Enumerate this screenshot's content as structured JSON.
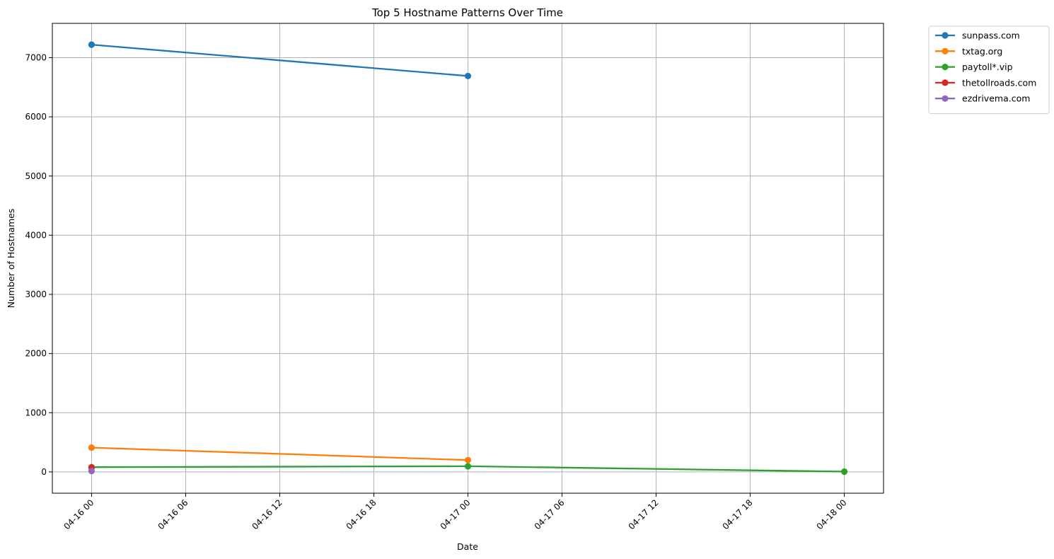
{
  "chart_data": {
    "type": "line",
    "title": "Top 5 Hostname Patterns Over Time",
    "xlabel": "Date",
    "ylabel": "Number of Hostnames",
    "x_tick_labels": [
      "04-16 00",
      "04-16 06",
      "04-16 12",
      "04-16 18",
      "04-17 00",
      "04-17 06",
      "04-17 12",
      "04-17 18",
      "04-18 00"
    ],
    "x_tick_hours": [
      0,
      6,
      12,
      18,
      24,
      30,
      36,
      42,
      48
    ],
    "xlim_hours": [
      -2.5,
      50.5
    ],
    "y_ticks": [
      0,
      1000,
      2000,
      3000,
      4000,
      5000,
      6000,
      7000
    ],
    "ylim": [
      -360,
      7580
    ],
    "grid": true,
    "legend_position": "outside-top-right",
    "series": [
      {
        "name": "sunpass.com",
        "color": "#1f77b4",
        "points": [
          [
            0,
            7220
          ],
          [
            24,
            6690
          ]
        ]
      },
      {
        "name": "txtag.org",
        "color": "#ff7f0e",
        "points": [
          [
            0,
            410
          ],
          [
            24,
            200
          ]
        ]
      },
      {
        "name": "paytoll*.vip",
        "color": "#2ca02c",
        "points": [
          [
            0,
            80
          ],
          [
            24,
            95
          ],
          [
            48,
            5
          ]
        ]
      },
      {
        "name": "thetollroads.com",
        "color": "#d62728",
        "points": [
          [
            0,
            75
          ]
        ]
      },
      {
        "name": "ezdrivema.com",
        "color": "#9467bd",
        "points": [
          [
            0,
            15
          ]
        ]
      }
    ]
  }
}
